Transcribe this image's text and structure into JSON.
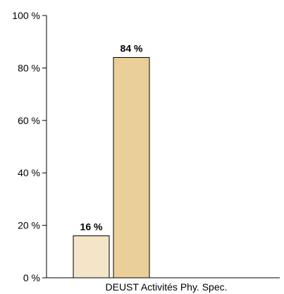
{
  "chart_data": {
    "type": "bar",
    "categories": [
      "DEUST Activités Phy. Spec."
    ],
    "series": [
      {
        "values": [
          16
        ],
        "color": "#f5e5c8"
      },
      {
        "values": [
          84
        ],
        "color": "#ebcf98"
      }
    ],
    "data_labels": [
      "16 %",
      "84 %"
    ],
    "yticks": [
      0,
      20,
      40,
      60,
      80,
      100
    ],
    "ytick_labels": [
      "0 %",
      "20 %",
      "40 %",
      "60 %",
      "80 %",
      "100 %"
    ],
    "ylim": [
      0,
      100
    ],
    "title": "",
    "xlabel": "",
    "ylabel": "",
    "grid": false,
    "legend": "none"
  }
}
